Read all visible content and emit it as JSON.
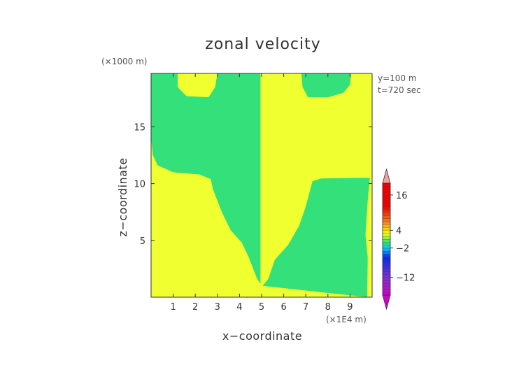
{
  "chart_data": {
    "type": "heatmap",
    "title": "zonal velocity",
    "xlabel": "x−coordinate",
    "ylabel": "z−coordinate",
    "x_units": "(×1E4 m)",
    "y_units": "(×1000 m)",
    "annotations": [
      "y=100 m",
      "t=720 sec"
    ],
    "xlim": [
      0,
      10
    ],
    "ylim": [
      0,
      19.7
    ],
    "x_ticks": [
      1,
      2,
      3,
      4,
      5,
      6,
      7,
      8,
      9
    ],
    "y_ticks": [
      5,
      10,
      15
    ],
    "colorbar": {
      "tick_labels": [
        "16",
        "4",
        "−2",
        "−12"
      ],
      "tick_values": [
        16,
        4,
        -2,
        -12
      ],
      "range": [
        -18,
        20
      ],
      "colors": {
        "pink_top": "#f4a0a0",
        "red": "#f00000",
        "orange": "#f08020",
        "yellow": "#ffff00",
        "green": "#30e070",
        "cyan": "#00d0f0",
        "blue": "#0030f0",
        "purple": "#8030d0",
        "magenta_bottom": "#d000d0"
      }
    },
    "regions": [
      {
        "level": "yellow",
        "color": "#f0ff30",
        "description": "background",
        "points": [
          [
            0,
            0
          ],
          [
            10,
            0
          ],
          [
            10,
            19.7
          ],
          [
            0,
            19.7
          ]
        ]
      },
      {
        "level": "green",
        "color": "#33e07a",
        "points": [
          [
            0,
            19.7
          ],
          [
            1.2,
            19.7
          ],
          [
            1.2,
            18.5
          ],
          [
            1.6,
            17.7
          ],
          [
            2.6,
            17.6
          ],
          [
            2.9,
            18.5
          ],
          [
            3.0,
            19.7
          ],
          [
            4.95,
            19.7
          ],
          [
            4.95,
            1.2
          ],
          [
            4.8,
            1.6
          ],
          [
            4.6,
            2.6
          ],
          [
            4.4,
            3.6
          ],
          [
            4.1,
            4.8
          ],
          [
            3.6,
            5.9
          ],
          [
            3.2,
            7.5
          ],
          [
            2.8,
            9.5
          ],
          [
            2.7,
            10.4
          ],
          [
            2.2,
            10.8
          ],
          [
            1.0,
            11.0
          ],
          [
            0.3,
            11.6
          ],
          [
            0.08,
            12.5
          ],
          [
            0,
            14
          ]
        ]
      },
      {
        "level": "green",
        "color": "#33e07a",
        "points": [
          [
            5.05,
            1.0
          ],
          [
            5.3,
            1.6
          ],
          [
            5.6,
            3.3
          ],
          [
            6.2,
            4.6
          ],
          [
            6.7,
            6.3
          ],
          [
            7.0,
            8.0
          ],
          [
            7.3,
            10.2
          ],
          [
            7.7,
            10.45
          ],
          [
            9.2,
            10.5
          ],
          [
            9.9,
            10.5
          ],
          [
            9.8,
            8.5
          ],
          [
            9.7,
            5.5
          ],
          [
            9.8,
            3.5
          ],
          [
            9.78,
            0
          ]
        ]
      },
      {
        "level": "green",
        "color": "#33e07a",
        "points": [
          [
            6.8,
            19.7
          ],
          [
            6.85,
            18.5
          ],
          [
            7.1,
            17.6
          ],
          [
            8.0,
            17.6
          ],
          [
            8.7,
            18.0
          ],
          [
            9.0,
            18.7
          ],
          [
            9.05,
            19.7
          ]
        ]
      }
    ]
  }
}
